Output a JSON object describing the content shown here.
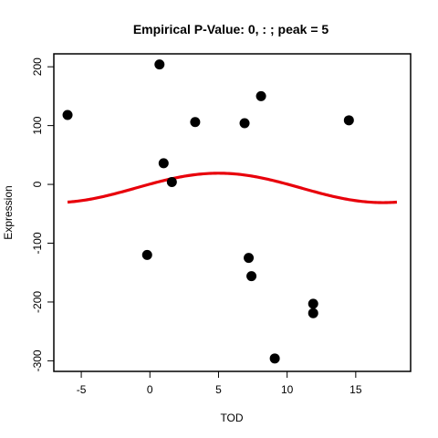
{
  "chart_data": {
    "type": "scatter",
    "title": "Empirical P-Value:  0, : ; peak = 5",
    "xlabel": "TOD",
    "ylabel": "Expression",
    "xlim": [
      -7,
      19
    ],
    "ylim": [
      -318,
      222
    ],
    "xticks": [
      -5,
      0,
      5,
      10,
      15
    ],
    "yticks": [
      -300,
      -200,
      -100,
      0,
      100,
      200
    ],
    "grid": false,
    "points": [
      {
        "x": -6.0,
        "y": 118
      },
      {
        "x": 0.7,
        "y": 204
      },
      {
        "x": 1.0,
        "y": 36
      },
      {
        "x": 1.6,
        "y": 4
      },
      {
        "x": 3.3,
        "y": 106
      },
      {
        "x": -0.2,
        "y": -120
      },
      {
        "x": 6.9,
        "y": 104
      },
      {
        "x": 8.1,
        "y": 150
      },
      {
        "x": 7.2,
        "y": -125
      },
      {
        "x": 7.4,
        "y": -156
      },
      {
        "x": 9.1,
        "y": -296
      },
      {
        "x": 11.9,
        "y": -203
      },
      {
        "x": 11.9,
        "y": -219
      },
      {
        "x": 14.5,
        "y": 109
      }
    ],
    "fit_curve": {
      "x_range": [
        -6,
        18
      ],
      "amplitude": 25,
      "offset": -6,
      "period": 24,
      "peak": 5,
      "color": "#e8000b"
    },
    "point_color": "#000000"
  }
}
